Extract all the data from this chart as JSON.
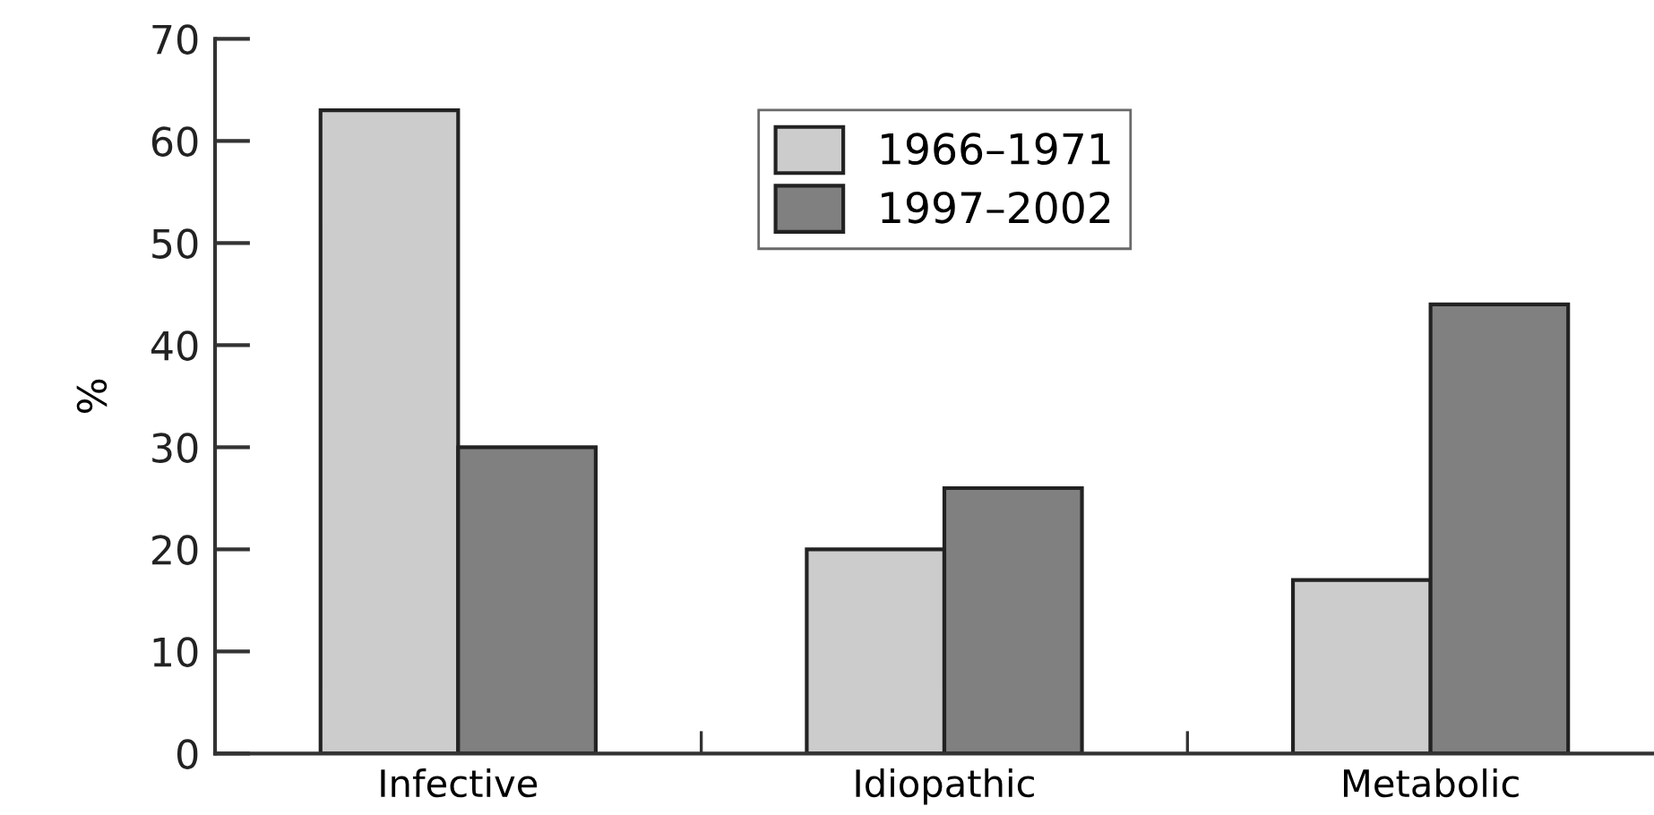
{
  "chart_data": {
    "type": "bar",
    "ylabel": "%",
    "categories": [
      "Infective",
      "Idiopathic",
      "Metabolic"
    ],
    "series": [
      {
        "name": "1966–1971",
        "color": "#cccccc",
        "values": [
          63,
          20,
          17
        ]
      },
      {
        "name": "1997–2002",
        "color": "#808080",
        "values": [
          30,
          26,
          44
        ]
      }
    ],
    "ylim": [
      0,
      70
    ],
    "yticks": [
      0,
      10,
      20,
      30,
      40,
      50,
      60,
      70
    ],
    "grid": false,
    "legend": "top"
  }
}
